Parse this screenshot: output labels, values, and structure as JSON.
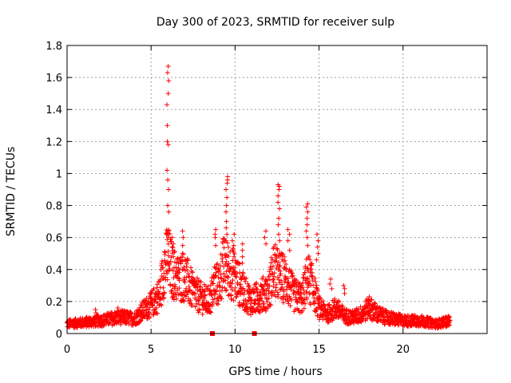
{
  "chart_data": {
    "type": "scatter",
    "title": "Day 300 of 2023, SRMTID for receiver sulp",
    "xlabel": "GPS time / hours",
    "ylabel": "SRMTID / TECUs",
    "xlim": [
      0,
      25
    ],
    "ylim": [
      0,
      1.8
    ],
    "x_ticks": [
      0,
      5,
      10,
      15,
      20
    ],
    "x_tick_labels": [
      "0",
      "5",
      "10",
      "15",
      "20"
    ],
    "y_ticks": [
      0,
      0.2,
      0.4,
      0.6,
      0.8,
      1.0,
      1.2,
      1.4,
      1.6,
      1.8
    ],
    "y_tick_labels": [
      "0",
      "0.2",
      "0.4",
      "0.6",
      "0.8",
      "1",
      "1.2",
      "1.4",
      "1.6",
      "1.8"
    ],
    "grid": true,
    "marker": "plus",
    "color": "#ff0000",
    "series": [
      {
        "name": "SRMTID",
        "envelope": [
          [
            0.0,
            0.06
          ],
          [
            1.0,
            0.07
          ],
          [
            2.0,
            0.08
          ],
          [
            3.0,
            0.1
          ],
          [
            3.5,
            0.1
          ],
          [
            4.0,
            0.09
          ],
          [
            4.5,
            0.14
          ],
          [
            5.0,
            0.18
          ],
          [
            5.5,
            0.24
          ],
          [
            5.8,
            0.42
          ],
          [
            6.0,
            0.48
          ],
          [
            6.3,
            0.38
          ],
          [
            6.6,
            0.34
          ],
          [
            7.0,
            0.36
          ],
          [
            7.5,
            0.26
          ],
          [
            8.0,
            0.22
          ],
          [
            8.5,
            0.2
          ],
          [
            8.8,
            0.32
          ],
          [
            9.0,
            0.3
          ],
          [
            9.3,
            0.42
          ],
          [
            9.6,
            0.4
          ],
          [
            10.0,
            0.36
          ],
          [
            10.5,
            0.26
          ],
          [
            11.0,
            0.2
          ],
          [
            11.5,
            0.24
          ],
          [
            12.0,
            0.26
          ],
          [
            12.3,
            0.4
          ],
          [
            12.6,
            0.36
          ],
          [
            13.0,
            0.34
          ],
          [
            13.5,
            0.24
          ],
          [
            14.0,
            0.22
          ],
          [
            14.3,
            0.36
          ],
          [
            14.6,
            0.3
          ],
          [
            15.0,
            0.16
          ],
          [
            15.5,
            0.12
          ],
          [
            16.0,
            0.16
          ],
          [
            16.5,
            0.11
          ],
          [
            17.0,
            0.1
          ],
          [
            17.5,
            0.12
          ],
          [
            18.0,
            0.16
          ],
          [
            18.5,
            0.12
          ],
          [
            19.0,
            0.1
          ],
          [
            20.0,
            0.08
          ],
          [
            21.0,
            0.08
          ],
          [
            22.0,
            0.06
          ],
          [
            22.8,
            0.08
          ]
        ],
        "peaks": [
          {
            "x": 6.0,
            "values": [
              1.67,
              1.63,
              1.58,
              1.5,
              1.43,
              1.3,
              1.2,
              1.18,
              1.02,
              0.96,
              0.9,
              0.8,
              0.76,
              0.62,
              0.56
            ]
          },
          {
            "x": 6.3,
            "values": [
              0.6,
              0.56,
              0.52,
              0.48
            ]
          },
          {
            "x": 6.9,
            "values": [
              0.64,
              0.6,
              0.55,
              0.5,
              0.45
            ]
          },
          {
            "x": 8.8,
            "values": [
              0.65,
              0.62,
              0.6,
              0.55
            ]
          },
          {
            "x": 9.5,
            "values": [
              0.98,
              0.96,
              0.94,
              0.9,
              0.85,
              0.8,
              0.76,
              0.7,
              0.66,
              0.62,
              0.58
            ]
          },
          {
            "x": 9.9,
            "values": [
              0.62,
              0.58,
              0.55,
              0.52,
              0.48
            ]
          },
          {
            "x": 10.4,
            "values": [
              0.56,
              0.52,
              0.48,
              0.44
            ]
          },
          {
            "x": 11.8,
            "values": [
              0.64,
              0.6,
              0.56
            ]
          },
          {
            "x": 12.6,
            "values": [
              0.93,
              0.92,
              0.9,
              0.86,
              0.82,
              0.78,
              0.72,
              0.68,
              0.62,
              0.58
            ]
          },
          {
            "x": 13.2,
            "values": [
              0.65,
              0.62,
              0.58,
              0.52
            ]
          },
          {
            "x": 14.3,
            "values": [
              0.81,
              0.79,
              0.76,
              0.72,
              0.68,
              0.64,
              0.6,
              0.55
            ]
          },
          {
            "x": 14.9,
            "values": [
              0.62,
              0.58,
              0.54,
              0.5,
              0.46
            ]
          },
          {
            "x": 15.7,
            "values": [
              0.34,
              0.31,
              0.28
            ]
          },
          {
            "x": 16.5,
            "values": [
              0.3,
              0.28,
              0.25
            ]
          },
          {
            "x": 18.0,
            "values": [
              0.23,
              0.21,
              0.19
            ]
          },
          {
            "x": 1.7,
            "values": [
              0.15,
              0.13
            ]
          },
          {
            "x": 3.0,
            "values": [
              0.16,
              0.14
            ]
          }
        ],
        "outliers": [
          [
            8.65,
            0.0
          ],
          [
            11.15,
            0.0
          ]
        ]
      }
    ]
  }
}
